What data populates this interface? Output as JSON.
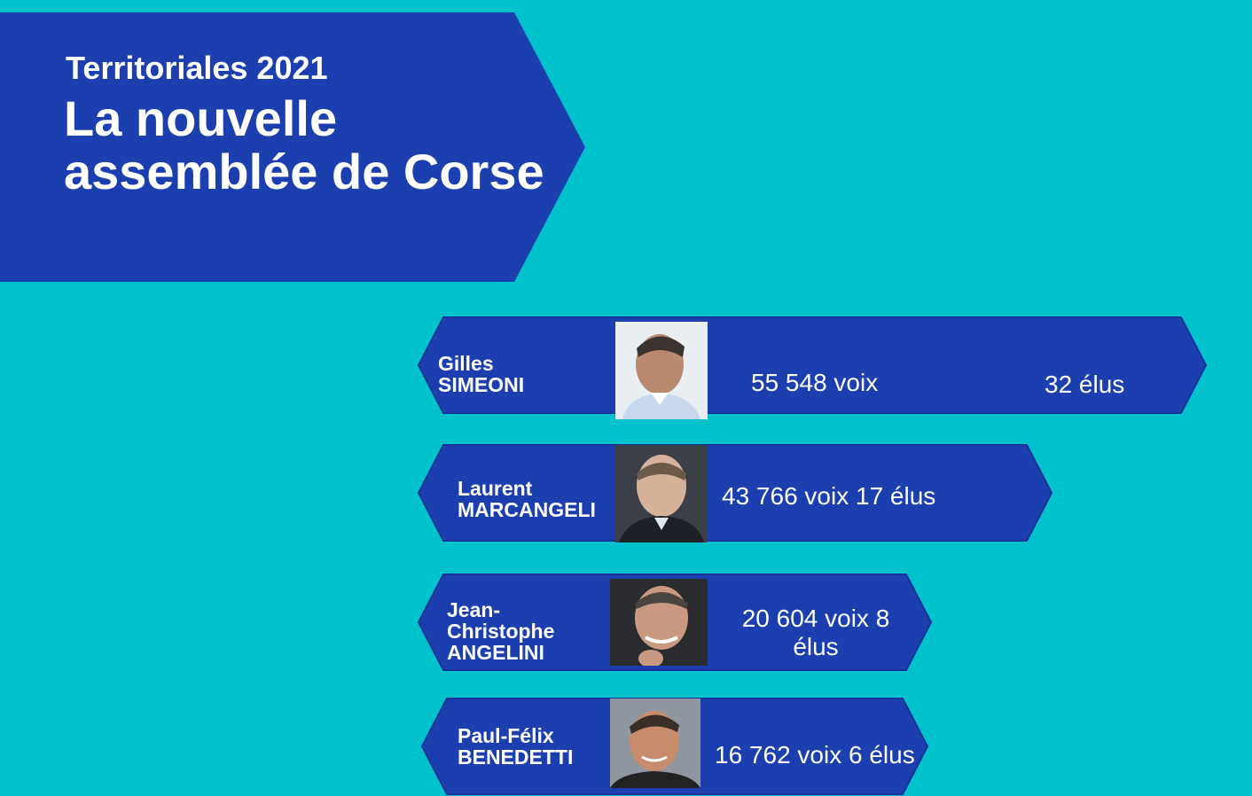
{
  "header": {
    "kicker": "Territoriales 2021",
    "title_line1": "La nouvelle",
    "title_line2": "assemblée de Corse"
  },
  "colors": {
    "background": "#00c2cc",
    "banner": "#1c3fb0",
    "banner_border": "#16329a",
    "text": "#ffffff"
  },
  "chart_data": {
    "type": "bar",
    "categories": [
      "Gilles SIMEONI",
      "Laurent MARCANGELI",
      "Jean-Christophe ANGELINI",
      "Paul-Félix BENEDETTI"
    ],
    "series": [
      {
        "values": [
          55548,
          43766,
          20604,
          16762
        ]
      }
    ],
    "elus": [
      32,
      17,
      8,
      6
    ]
  },
  "candidates": [
    {
      "first": "Gilles",
      "last": "SIMEONI",
      "voix_text": "55 548 voix",
      "elus_text": "32  élus",
      "photo_icon": "portrait-icon"
    },
    {
      "first": "Laurent",
      "last": "MARCANGELI",
      "combined_text": "43  766 voix   17 élus",
      "photo_icon": "portrait-icon"
    },
    {
      "first": "Jean-",
      "first_line2": "Christophe",
      "last": "ANGELINI",
      "line1_text": "20 604 voix  8",
      "line2_text": "élus",
      "photo_icon": "portrait-icon"
    },
    {
      "first": "Paul-Félix",
      "last": "BENEDETTI",
      "combined_text": "16 762 voix  6 élus",
      "photo_icon": "portrait-icon"
    }
  ]
}
